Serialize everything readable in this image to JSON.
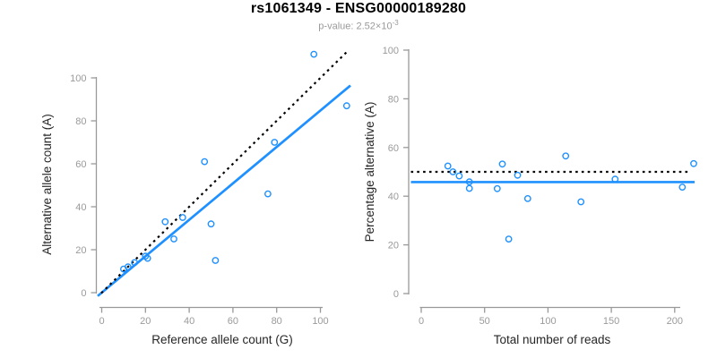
{
  "header": {
    "title": "rs1061349 - ENSG00000189280",
    "subtitle": {
      "prefix": "p-value: ",
      "base": "2.52×10",
      "exponent": "-3"
    }
  },
  "colors": {
    "accent_blue": "#1E90FF",
    "expected_line_black": "#000000",
    "axis_gray": "#999999",
    "tick_label_gray": "#9a9a9a",
    "axis_title_dark": "#262626",
    "subtitle_gray": "#9a9a9a"
  },
  "chart_data": [
    {
      "id": "allele-counts",
      "type": "scatter",
      "title": "",
      "xlabel": "Reference allele count (G)",
      "ylabel": "Alternative allele count (A)",
      "x_ticks": [
        0,
        20,
        40,
        60,
        80,
        100
      ],
      "y_ticks": [
        0,
        20,
        40,
        60,
        80,
        100
      ],
      "xlim": [
        0,
        112
      ],
      "ylim": [
        0,
        111
      ],
      "grid": false,
      "legend": null,
      "points": [
        [
          10,
          11
        ],
        [
          12,
          12
        ],
        [
          15,
          14
        ],
        [
          20,
          17
        ],
        [
          21,
          16
        ],
        [
          29,
          33
        ],
        [
          33,
          25
        ],
        [
          37,
          35
        ],
        [
          47,
          61
        ],
        [
          50,
          32
        ],
        [
          52,
          15
        ],
        [
          76,
          46
        ],
        [
          79,
          70
        ],
        [
          97,
          111
        ],
        [
          112,
          87
        ]
      ],
      "lines": [
        {
          "name": "fit-line",
          "style": "solid",
          "slope": 0.848,
          "intercept": 0
        },
        {
          "name": "expected-line",
          "style": "dotted",
          "slope": 1,
          "intercept": 0
        }
      ]
    },
    {
      "id": "percentage-vs-coverage",
      "type": "scatter",
      "title": "",
      "xlabel": "Total number of reads",
      "ylabel": "Percentage alternative (A)",
      "x_ticks": [
        0,
        50,
        100,
        150,
        200
      ],
      "y_ticks": [
        0,
        20,
        40,
        60,
        80,
        100
      ],
      "xlim": [
        0,
        215
      ],
      "ylim": [
        0,
        100
      ],
      "grid": false,
      "legend": null,
      "points": [
        [
          21,
          52.4
        ],
        [
          25,
          50.0
        ],
        [
          30,
          48.3
        ],
        [
          38,
          45.9
        ],
        [
          38,
          43.2
        ],
        [
          64,
          53.2
        ],
        [
          60,
          43.1
        ],
        [
          76,
          48.6
        ],
        [
          114,
          56.5
        ],
        [
          84,
          39.0
        ],
        [
          69,
          22.4
        ],
        [
          126,
          37.7
        ],
        [
          153,
          47.0
        ],
        [
          215,
          53.4
        ],
        [
          206,
          43.7
        ]
      ],
      "lines": [
        {
          "name": "fit-line",
          "style": "solid",
          "y": 45.8
        },
        {
          "name": "expected-line",
          "style": "dotted",
          "y": 50
        }
      ]
    }
  ]
}
